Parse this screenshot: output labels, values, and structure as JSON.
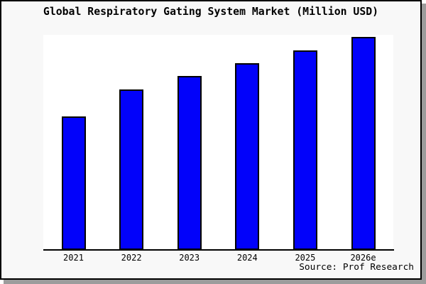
{
  "window": {
    "background": "#f8f8f8",
    "plot_background": "#ffffff",
    "border_color": "#000000",
    "shadow_color": "#9c9c9c"
  },
  "chart_data": {
    "type": "bar",
    "title": "Global Respiratory Gating System Market (Million USD)",
    "categories": [
      "2021",
      "2022",
      "2023",
      "2024",
      "2025",
      "2026e"
    ],
    "values": [
      188,
      226,
      245,
      263,
      281,
      300
    ],
    "values_note": "y-axis is unlabeled; values are relative bar heights estimated from pixels",
    "xlabel": "",
    "ylabel": "",
    "ylim": [
      0,
      303
    ],
    "grid": false,
    "legend": false,
    "y_axis_visible": false,
    "bar_color": "#0202fa",
    "bar_border_color": "#000000"
  },
  "footer": {
    "source": "Source: Prof Research"
  }
}
